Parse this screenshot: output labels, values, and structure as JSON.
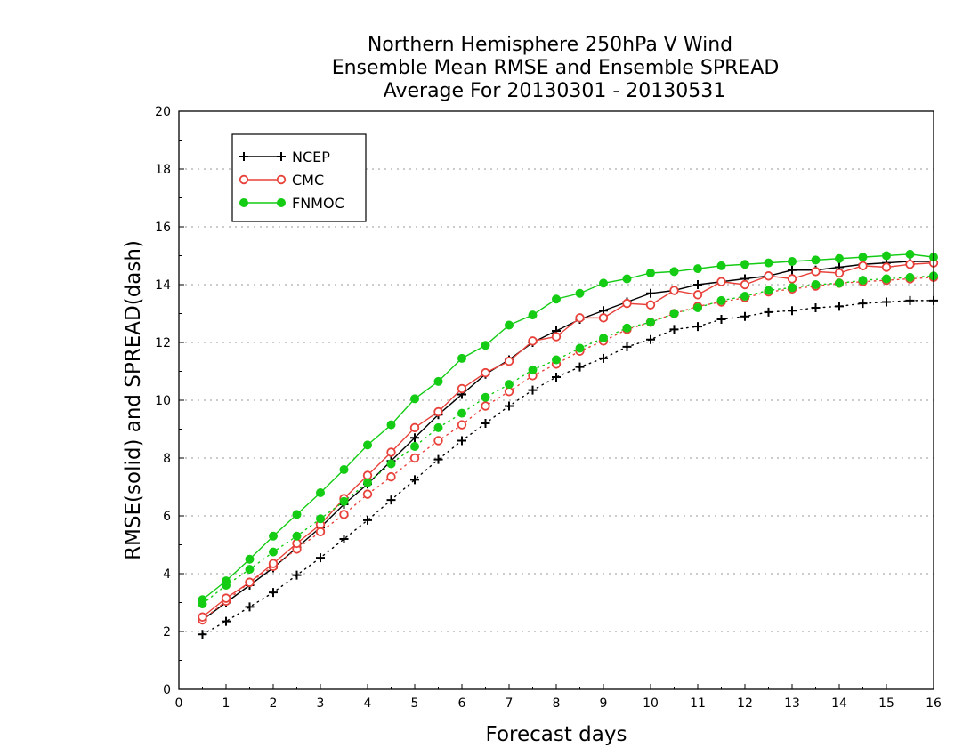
{
  "chart_data": {
    "type": "line",
    "title_lines": [
      "Northern Hemisphere 250hPa V Wind",
      "Ensemble Mean RMSE and Ensemble SPREAD",
      "Average For 20130301 - 20130531"
    ],
    "xlabel": "Forecast days",
    "ylabel": "RMSE(solid) and SPREAD(dash)",
    "xlim": [
      0,
      16
    ],
    "ylim": [
      0,
      20
    ],
    "xticks": [
      "0",
      "1",
      "2",
      "3",
      "4",
      "5",
      "6",
      "7",
      "8",
      "9",
      "10",
      "11",
      "12",
      "13",
      "14",
      "15",
      "16"
    ],
    "yticks": [
      "0",
      "2",
      "4",
      "6",
      "8",
      "10",
      "12",
      "14",
      "16",
      "18",
      "20"
    ],
    "grid": "dotted horizontal",
    "legend_position": "top-left",
    "x": [
      0.5,
      1,
      1.5,
      2,
      2.5,
      3,
      3.5,
      4,
      4.5,
      5,
      5.5,
      6,
      6.5,
      7,
      7.5,
      8,
      8.5,
      9,
      9.5,
      10,
      10.5,
      11,
      11.5,
      12,
      12.5,
      13,
      13.5,
      14,
      14.5,
      15,
      15.5,
      16
    ],
    "series": [
      {
        "name": "NCEP",
        "color": "#000000",
        "marker": "plus",
        "rmse": [
          2.4,
          3.0,
          3.6,
          4.2,
          4.9,
          5.6,
          6.4,
          7.1,
          7.9,
          8.7,
          9.5,
          10.2,
          10.9,
          11.4,
          12.0,
          12.4,
          12.8,
          13.1,
          13.4,
          13.7,
          13.8,
          14.0,
          14.1,
          14.2,
          14.3,
          14.5,
          14.5,
          14.6,
          14.7,
          14.75,
          14.8,
          14.8
        ],
        "spread": [
          1.9,
          2.35,
          2.85,
          3.35,
          3.95,
          4.55,
          5.2,
          5.85,
          6.55,
          7.25,
          7.95,
          8.6,
          9.2,
          9.8,
          10.35,
          10.8,
          11.15,
          11.45,
          11.85,
          12.1,
          12.45,
          12.55,
          12.8,
          12.9,
          13.05,
          13.1,
          13.2,
          13.25,
          13.35,
          13.4,
          13.45,
          13.45
        ]
      },
      {
        "name": "CMC",
        "color": "#e8413a",
        "marker": "circle-open",
        "rmse": [
          2.5,
          3.15,
          3.7,
          4.35,
          5.05,
          5.7,
          6.6,
          7.4,
          8.2,
          9.05,
          9.6,
          10.4,
          10.95,
          11.35,
          12.05,
          12.2,
          12.85,
          12.85,
          13.35,
          13.3,
          13.8,
          13.65,
          14.1,
          14.0,
          14.3,
          14.2,
          14.45,
          14.4,
          14.65,
          14.6,
          14.7,
          14.75
        ],
        "spread": [
          2.4,
          3.05,
          3.7,
          4.25,
          4.85,
          5.45,
          6.05,
          6.75,
          7.35,
          8.0,
          8.6,
          9.15,
          9.8,
          10.3,
          10.85,
          11.25,
          11.7,
          12.05,
          12.45,
          12.7,
          13.0,
          13.25,
          13.4,
          13.55,
          13.75,
          13.85,
          13.95,
          14.05,
          14.1,
          14.15,
          14.2,
          14.25
        ]
      },
      {
        "name": "FNMOC",
        "color": "#14cc14",
        "marker": "circle-filled",
        "rmse": [
          3.1,
          3.75,
          4.5,
          5.3,
          6.05,
          6.8,
          7.6,
          8.45,
          9.15,
          10.05,
          10.65,
          11.45,
          11.9,
          12.6,
          12.95,
          13.5,
          13.7,
          14.05,
          14.2,
          14.4,
          14.45,
          14.55,
          14.65,
          14.7,
          14.75,
          14.8,
          14.85,
          14.9,
          14.95,
          15.0,
          15.05,
          14.95
        ],
        "spread": [
          2.95,
          3.6,
          4.15,
          4.75,
          5.3,
          5.9,
          6.5,
          7.15,
          7.8,
          8.4,
          9.05,
          9.55,
          10.1,
          10.55,
          11.05,
          11.4,
          11.8,
          12.15,
          12.5,
          12.7,
          13.0,
          13.2,
          13.45,
          13.6,
          13.8,
          13.9,
          14.0,
          14.05,
          14.15,
          14.2,
          14.25,
          14.3
        ]
      }
    ]
  }
}
